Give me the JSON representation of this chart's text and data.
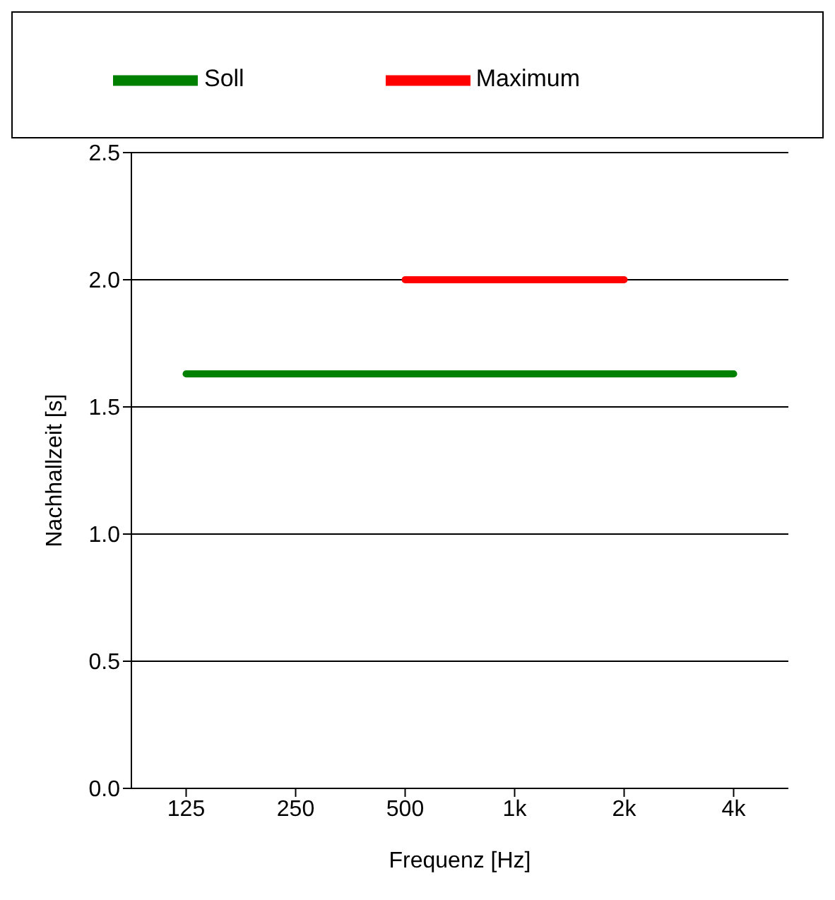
{
  "chart_data": {
    "type": "line",
    "xlabel": "Frequenz [Hz]",
    "ylabel": "Nachhallzeit [s]",
    "categories": [
      "125",
      "250",
      "500",
      "1k",
      "2k",
      "4k"
    ],
    "series": [
      {
        "name": "Soll",
        "color": "#008000",
        "values": [
          1.63,
          1.63,
          1.63,
          1.63,
          1.63,
          1.63
        ]
      },
      {
        "name": "Maximum",
        "color": "#ff0000",
        "values": [
          null,
          null,
          2.0,
          2.0,
          2.0,
          null
        ]
      }
    ],
    "ylim": [
      0,
      2.5
    ],
    "yticks": [
      {
        "value": 0,
        "label": "0.0"
      },
      {
        "value": 0.5,
        "label": "0.5"
      },
      {
        "value": 1,
        "label": "1.0"
      },
      {
        "value": 1.5,
        "label": "1.5"
      },
      {
        "value": 2,
        "label": "2.0"
      },
      {
        "value": 2.5,
        "label": "2.5"
      }
    ],
    "grid": "y",
    "legend": "top",
    "marker": "none",
    "line_style": "solid"
  }
}
